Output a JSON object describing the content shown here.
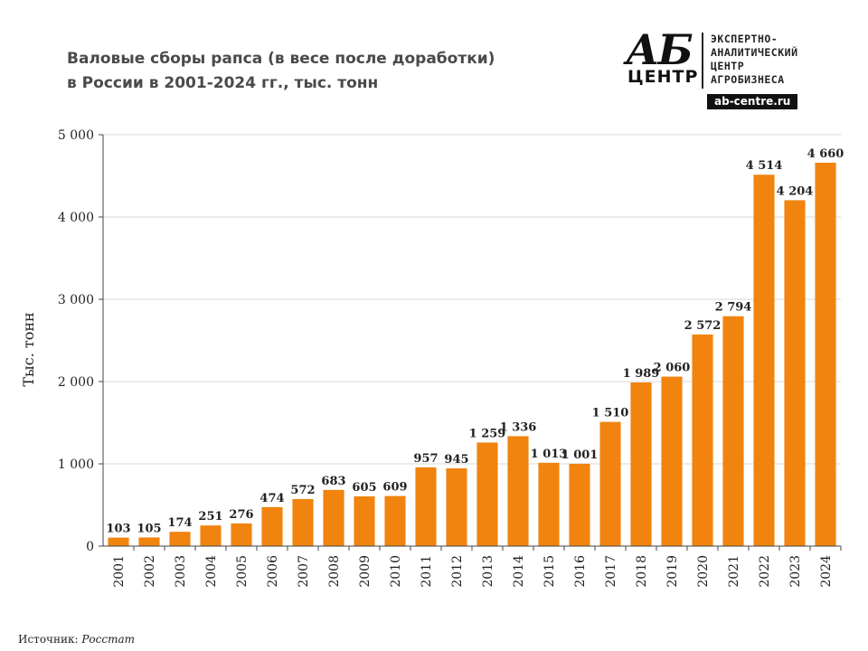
{
  "chart_data": {
    "type": "bar",
    "title_line1": "Валовые сборы рапса (в весе после доработки)",
    "title_line2": "в России в 2001-2024 гг., тыс. тонн",
    "ylabel": "Тыс. тонн",
    "categories": [
      "2001",
      "2002",
      "2003",
      "2004",
      "2005",
      "2006",
      "2007",
      "2008",
      "2009",
      "2010",
      "2011",
      "2012",
      "2013",
      "2014",
      "2015",
      "2016",
      "2017",
      "2018",
      "2019",
      "2020",
      "2021",
      "2022",
      "2023",
      "2024"
    ],
    "values": [
      103,
      105,
      174,
      251,
      276,
      474,
      572,
      683,
      605,
      609,
      957,
      945,
      1259,
      1336,
      1013,
      1001,
      1510,
      1989,
      2060,
      2572,
      2794,
      4514,
      4204,
      4660
    ],
    "value_labels": [
      "103",
      "105",
      "174",
      "251",
      "276",
      "474",
      "572",
      "683",
      "605",
      "609",
      "957",
      "945",
      "1 259",
      "1 336",
      "1 013",
      "1 001",
      "1 510",
      "1 989",
      "2 060",
      "2 572",
      "2 794",
      "4 514",
      "4 204",
      "4 660"
    ],
    "ylim": [
      0,
      5000
    ],
    "yticks": [
      0,
      1000,
      2000,
      3000,
      4000,
      5000
    ],
    "ytick_labels": [
      "0",
      "1 000",
      "2 000",
      "3 000",
      "4 000",
      "5 000"
    ],
    "grid": true,
    "bar_color": "#F0840F"
  },
  "logo": {
    "ab": "АБ",
    "center": "ЦЕНТР",
    "lines": [
      "ЭКСПЕРТНО-",
      "АНАЛИТИЧЕСКИЙ",
      "ЦЕНТР",
      "АГРОБИЗНЕСА"
    ],
    "url": "ab-centre.ru"
  },
  "source": {
    "label": "Источник:",
    "name": "Росстат"
  }
}
